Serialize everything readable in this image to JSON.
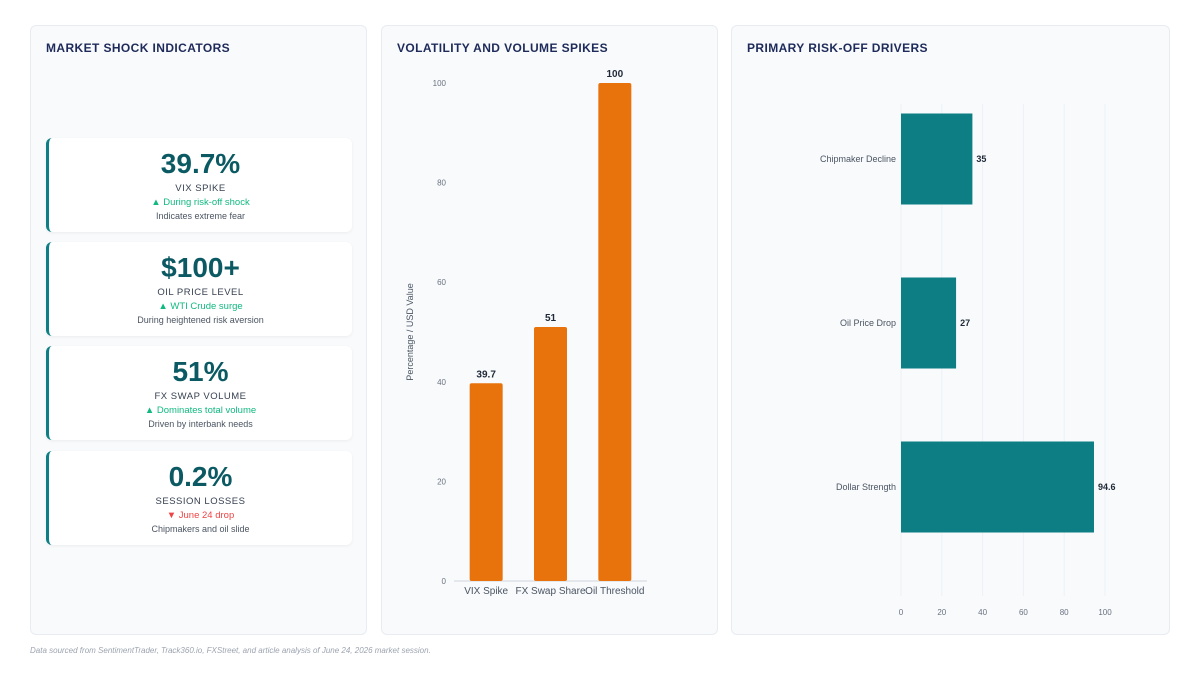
{
  "colors": {
    "accent": "#0d7f84",
    "bar": "#e8730c",
    "title": "#1e2a5a",
    "kpi_value": "#0b5a63",
    "up": "#10b981",
    "down": "#ef4444"
  },
  "panels": {
    "indicators_title": "MARKET SHOCK INDICATORS",
    "volatility_title": "VOLATILITY AND VOLUME SPIKES",
    "drivers_title": "PRIMARY RISK-OFF DRIVERS"
  },
  "kpis": [
    {
      "value": "39.7%",
      "label": "VIX SPIKE",
      "change": "▲ During risk-off shock",
      "direction": "up",
      "note": "Indicates extreme fear"
    },
    {
      "value": "$100+",
      "label": "OIL PRICE LEVEL",
      "change": "▲ WTI Crude surge",
      "direction": "up",
      "note": "During heightened risk aversion"
    },
    {
      "value": "51%",
      "label": "FX SWAP VOLUME",
      "change": "▲ Dominates total volume",
      "direction": "up",
      "note": "Driven by interbank needs"
    },
    {
      "value": "0.2%",
      "label": "SESSION LOSSES",
      "change": "▼ June 24 drop",
      "direction": "down",
      "note": "Chipmakers and oil slide"
    }
  ],
  "chart_data": [
    {
      "type": "bar",
      "title": "VOLATILITY AND VOLUME SPIKES",
      "categories": [
        "VIX Spike",
        "FX Swap Share",
        "Oil Threshold"
      ],
      "values": [
        39.7,
        51,
        100
      ],
      "value_labels": [
        "39.7",
        "51",
        "100"
      ],
      "xlabel": "",
      "ylabel": "Percentage / USD Value",
      "ylim": [
        0,
        100
      ],
      "yticks": [
        "0",
        "20",
        "40",
        "60",
        "80",
        "100"
      ],
      "grid": false
    },
    {
      "type": "bar",
      "orientation": "horizontal",
      "title": "PRIMARY RISK-OFF DRIVERS",
      "categories": [
        "Chipmaker Decline",
        "Oil Price Drop",
        "Dollar Strength"
      ],
      "values": [
        35,
        27,
        94.6
      ],
      "value_labels": [
        "35",
        "27",
        "94.6"
      ],
      "xlim": [
        0,
        100
      ],
      "xticks": [
        "0",
        "20",
        "40",
        "60",
        "80",
        "100"
      ],
      "grid": true
    }
  ],
  "footer": "Data sourced from SentimentTrader, Track360.io, FXStreet, and article analysis of June 24, 2026 market session."
}
